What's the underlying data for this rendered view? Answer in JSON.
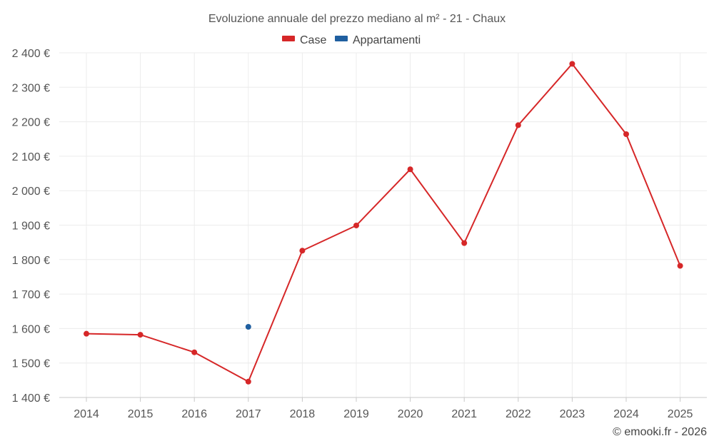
{
  "chart_data": {
    "type": "line",
    "title": "Evoluzione annuale del prezzo mediano al m² - 21 - Chaux",
    "categories": [
      "2014",
      "2015",
      "2016",
      "2017",
      "2018",
      "2019",
      "2020",
      "2021",
      "2022",
      "2023",
      "2024",
      "2025"
    ],
    "y_ticks": [
      "1 400 €",
      "1 500 €",
      "1 600 €",
      "1 700 €",
      "1 800 €",
      "1 900 €",
      "2 000 €",
      "2 100 €",
      "2 200 €",
      "2 300 €",
      "2 400 €"
    ],
    "ylim": [
      1400,
      2400
    ],
    "grid": true,
    "legend_position": "top-center",
    "series": [
      {
        "name": "Case",
        "color": "#d62728",
        "values": [
          1585,
          1582,
          1531,
          1446,
          1826,
          1899,
          2062,
          1848,
          2190,
          2368,
          2164,
          1782
        ]
      },
      {
        "name": "Appartamenti",
        "color": "#1f5fa0",
        "values": [
          null,
          null,
          null,
          1605,
          null,
          null,
          null,
          null,
          null,
          null,
          null,
          null
        ]
      }
    ]
  },
  "credit": "© emooki.fr - 2026"
}
